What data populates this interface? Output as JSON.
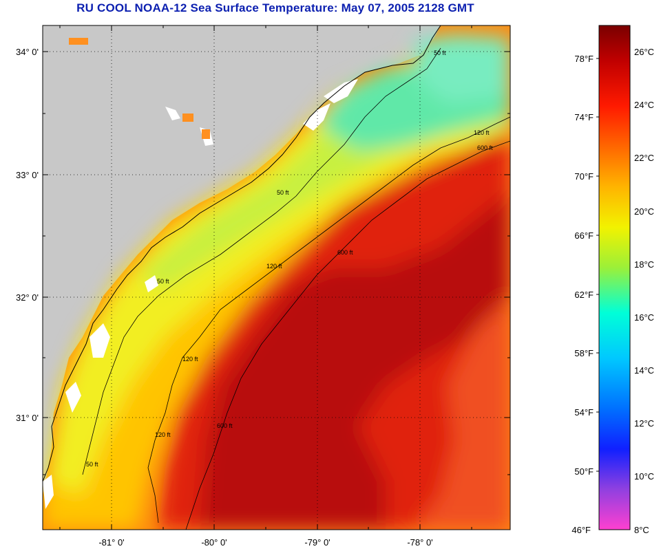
{
  "title": "RU COOL  NOAA-12  Sea Surface Temperature:  May 07, 2005 2128 GMT",
  "map": {
    "lat_labels": [
      "34° 0'",
      "33° 0'",
      "32° 0'",
      "31° 0'"
    ],
    "lon_labels": [
      "-81° 0'",
      "-80° 0'",
      "-79° 0'",
      "-78° 0'"
    ],
    "contour_labels": {
      "c50": "50 ft",
      "c120": "120 ft",
      "c600": "600 ft"
    },
    "colors": {
      "land": "#c8c8c8",
      "cold_shelf": "#5de8b0",
      "mid_shelf": "#e6f03a",
      "warm_shelf": "#ff9a10",
      "gulf_stream": "#cf1010"
    }
  },
  "colorbar": {
    "fahrenheit_labels": [
      "78°F",
      "74°F",
      "70°F",
      "66°F",
      "62°F",
      "58°F",
      "54°F",
      "50°F",
      "46°F"
    ],
    "celsius_labels": [
      "26°C",
      "24°C",
      "22°C",
      "20°C",
      "18°C",
      "16°C",
      "14°C",
      "12°C",
      "10°C",
      "8°C"
    ],
    "stops": [
      "#7a0000",
      "#e00000",
      "#ff5a00",
      "#ffb000",
      "#f2f200",
      "#7cf04a",
      "#00ffe0",
      "#00a0ff",
      "#1020ff",
      "#9040e0",
      "#ff40d0"
    ]
  }
}
